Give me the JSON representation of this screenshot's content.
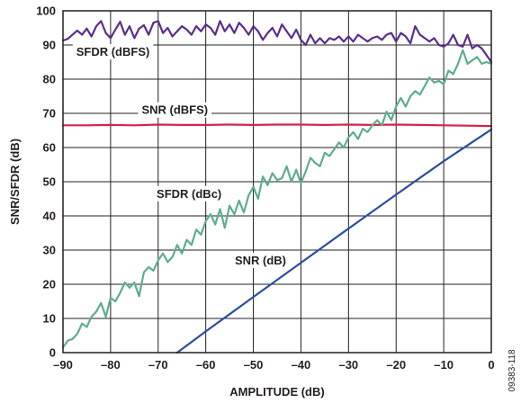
{
  "chart_data": {
    "type": "line",
    "xlabel": "AMPLITUDE (dB)",
    "ylabel": "SNR/SFDR (dB)",
    "xlim": [
      -90,
      0
    ],
    "ylim": [
      0,
      100
    ],
    "x_ticks": [
      -90,
      -80,
      -70,
      -60,
      -50,
      -40,
      -30,
      -20,
      -10,
      0
    ],
    "x_tick_labels": [
      "–90",
      "–80",
      "–70",
      "–60",
      "–50",
      "–40",
      "–30",
      "–20",
      "–10",
      "0"
    ],
    "y_ticks": [
      0,
      10,
      20,
      30,
      40,
      50,
      60,
      70,
      80,
      90,
      100
    ],
    "y_tick_labels": [
      "0",
      "10",
      "20",
      "30",
      "40",
      "50",
      "60",
      "70",
      "80",
      "90",
      "100"
    ],
    "grid": true,
    "figure_id": "09383-118",
    "series": [
      {
        "name": "SFDR (dBFS)",
        "color": "#5b2d8e",
        "x": [
          -90,
          -89,
          -88,
          -87,
          -86,
          -85,
          -84,
          -83,
          -82,
          -81,
          -80,
          -79,
          -78,
          -77,
          -76,
          -75,
          -74,
          -73,
          -72,
          -71,
          -70,
          -69,
          -68,
          -67,
          -66,
          -65,
          -64,
          -63,
          -62,
          -61,
          -60,
          -59,
          -58,
          -57,
          -56,
          -55,
          -54,
          -53,
          -52,
          -51,
          -50,
          -49,
          -48,
          -47,
          -46,
          -45,
          -44,
          -43,
          -42,
          -41,
          -40,
          -39,
          -38,
          -37,
          -36,
          -35,
          -34,
          -33,
          -32,
          -31,
          -30,
          -29,
          -28,
          -27,
          -26,
          -25,
          -24,
          -23,
          -22,
          -21,
          -20,
          -19,
          -18,
          -17,
          -16,
          -15,
          -14,
          -13,
          -12,
          -11,
          -10,
          -9,
          -8,
          -7,
          -6,
          -5,
          -4,
          -3,
          -2,
          -1,
          0
        ],
        "y": [
          91.3,
          91.8,
          93.0,
          94.2,
          93.0,
          94.8,
          92.5,
          95.5,
          97.0,
          93.5,
          92.0,
          94.5,
          96.8,
          93.0,
          95.5,
          92.0,
          94.8,
          95.8,
          93.0,
          96.5,
          97.0,
          93.5,
          95.0,
          92.5,
          94.0,
          95.5,
          94.5,
          93.0,
          95.5,
          94.0,
          96.0,
          95.0,
          93.0,
          97.0,
          94.0,
          96.0,
          93.5,
          96.5,
          95.0,
          93.0,
          95.5,
          94.0,
          91.5,
          93.5,
          95.0,
          92.5,
          96.0,
          94.0,
          92.0,
          94.5,
          91.5,
          90.0,
          93.0,
          90.5,
          92.0,
          90.5,
          92.0,
          91.5,
          92.5,
          91.0,
          92.5,
          91.0,
          93.0,
          92.0,
          91.0,
          92.0,
          92.5,
          91.5,
          93.0,
          93.5,
          91.0,
          93.5,
          92.5,
          90.5,
          95.5,
          93.0,
          92.0,
          91.0,
          92.0,
          90.0,
          89.5,
          90.5,
          93.0,
          90.0,
          89.5,
          93.0,
          89.0,
          90.0,
          89.0,
          87.0,
          85.0
        ]
      },
      {
        "name": "SNR (dBFS)",
        "color": "#d6234a",
        "x": [
          -90,
          -85,
          -80,
          -75,
          -70,
          -65,
          -60,
          -55,
          -50,
          -45,
          -40,
          -35,
          -30,
          -25,
          -20,
          -15,
          -10,
          -5,
          0
        ],
        "y": [
          66.5,
          66.5,
          66.6,
          66.5,
          66.7,
          66.6,
          66.6,
          66.7,
          66.6,
          66.7,
          66.7,
          66.6,
          66.7,
          66.6,
          66.7,
          66.6,
          66.5,
          66.4,
          66.3
        ]
      },
      {
        "name": "SFDR (dBc)",
        "color": "#5eae8c",
        "x": [
          -90,
          -89,
          -88,
          -87,
          -86,
          -85,
          -84,
          -83,
          -82,
          -81,
          -80,
          -79,
          -78,
          -77,
          -76,
          -75,
          -74,
          -73,
          -72,
          -71,
          -70,
          -69,
          -68,
          -67,
          -66,
          -65,
          -64,
          -63,
          -62,
          -61,
          -60,
          -59,
          -58,
          -57,
          -56,
          -55,
          -54,
          -53,
          -52,
          -51,
          -50,
          -49,
          -48,
          -47,
          -46,
          -45,
          -44,
          -43,
          -42,
          -41,
          -40,
          -39,
          -38,
          -37,
          -36,
          -35,
          -34,
          -33,
          -32,
          -31,
          -30,
          -29,
          -28,
          -27,
          -26,
          -25,
          -24,
          -23,
          -22,
          -21,
          -20,
          -19,
          -18,
          -17,
          -16,
          -15,
          -14,
          -13,
          -12,
          -11,
          -10,
          -9,
          -8,
          -7,
          -6,
          -5,
          -4,
          -3,
          -2,
          -1,
          0
        ],
        "y": [
          1.5,
          3.5,
          4.0,
          5.5,
          8.5,
          7.5,
          10.5,
          12.0,
          14.5,
          10.5,
          16.0,
          15.0,
          17.5,
          20.5,
          19.0,
          20.5,
          16.5,
          23.5,
          25.0,
          24.0,
          27.0,
          29.0,
          26.5,
          28.0,
          31.5,
          29.0,
          33.0,
          31.5,
          36.0,
          34.5,
          38.5,
          40.5,
          37.5,
          42.0,
          36.5,
          43.0,
          40.5,
          44.5,
          41.0,
          46.0,
          48.5,
          45.0,
          51.5,
          49.0,
          52.5,
          50.5,
          51.0,
          54.5,
          50.0,
          53.5,
          49.5,
          53.0,
          57.0,
          55.5,
          54.5,
          58.5,
          57.5,
          59.5,
          61.5,
          60.0,
          63.0,
          64.5,
          62.5,
          65.5,
          64.5,
          66.5,
          68.0,
          66.5,
          70.5,
          68.0,
          72.0,
          74.5,
          72.0,
          75.0,
          76.5,
          75.5,
          78.0,
          80.5,
          79.0,
          79.5,
          78.5,
          82.5,
          81.5,
          84.5,
          88.5,
          84.5,
          85.5,
          86.5,
          84.5,
          85.0,
          84.5
        ]
      },
      {
        "name": "SNR (dB)",
        "color": "#2b4f9e",
        "x": [
          -66,
          -60,
          -50,
          -40,
          -30,
          -20,
          -10,
          0
        ],
        "y": [
          0,
          6.2,
          16.3,
          26.3,
          36.3,
          46.2,
          56.0,
          65.3
        ]
      }
    ],
    "annotations": [
      {
        "text": "SFDR (dBFS)",
        "x": -79.5,
        "y": 88.0,
        "series": 0
      },
      {
        "text": "SNR (dBFS)",
        "x": -66.5,
        "y": 71.0,
        "series": 1
      },
      {
        "text": "SFDR (dBc)",
        "x": -63.5,
        "y": 46.5,
        "series": 2
      },
      {
        "text": "SNR (dB)",
        "x": -48.5,
        "y": 27.0,
        "series": 3
      }
    ]
  }
}
